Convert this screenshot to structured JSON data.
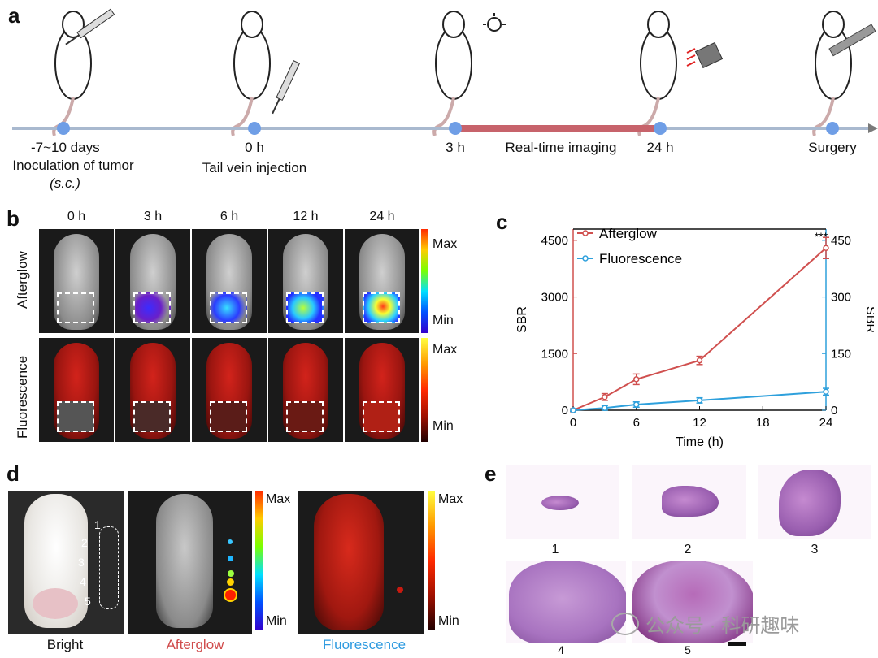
{
  "panels": {
    "a": "a",
    "b": "b",
    "c": "c",
    "d": "d",
    "e": "e"
  },
  "timeline": {
    "step1_line1": "-7~10 days",
    "step1_line2": "Inoculation of tumor",
    "step1_line3": "(s.c.)",
    "step2_line1": "0 h",
    "step2_line2": "Tail vein injection",
    "step3": "3 h",
    "imaging": "Real-time imaging",
    "step4": "24 h",
    "step5": "Surgery",
    "colors": {
      "axis": "#a9b9cf",
      "imaging_segment": "#c7636b",
      "node": "#6f9ee6"
    }
  },
  "panel_b": {
    "columns": [
      "0 h",
      "3 h",
      "6 h",
      "12 h",
      "24 h"
    ],
    "rows": [
      "Afterglow",
      "Fluorescence"
    ],
    "bar_max": "Max",
    "bar_min": "Min"
  },
  "chart_data": {
    "type": "line",
    "xlabel": "Time (h)",
    "ylabel_left": "SBR",
    "ylabel_right": "SBR",
    "x": [
      0,
      3,
      6,
      12,
      24
    ],
    "x_ticks": [
      0,
      6,
      12,
      18,
      24
    ],
    "left_ticks": [
      0,
      1500,
      3000,
      4500
    ],
    "right_ticks": [
      0,
      150,
      300,
      450
    ],
    "ylim_left": [
      0,
      4800
    ],
    "ylim_right": [
      0,
      480
    ],
    "annotation": "***",
    "series": [
      {
        "name": "Afterglow",
        "axis": "left",
        "color": "#d0504f",
        "values": [
          0,
          350,
          820,
          1320,
          4300
        ],
        "errors": [
          40,
          90,
          140,
          110,
          280
        ]
      },
      {
        "name": "Fluorescence",
        "axis": "right",
        "color": "#2ea0dc",
        "values": [
          0,
          6,
          15,
          26,
          49
        ],
        "errors": [
          3,
          6,
          7,
          7,
          9
        ]
      }
    ]
  },
  "panel_d": {
    "labels": {
      "bright": "Bright",
      "afterglow": "Afterglow",
      "fluorescence": "Fluorescence"
    },
    "spots": [
      "1",
      "2",
      "3",
      "4",
      "5"
    ],
    "bar_max": "Max",
    "bar_min": "Min",
    "colors": {
      "afterglow": "#d04b4b",
      "fluorescence": "#2f9be0"
    }
  },
  "panel_e": {
    "numbers": [
      "1",
      "2",
      "3",
      "4",
      "5"
    ]
  },
  "watermark": "公众号 · 科研趣味"
}
